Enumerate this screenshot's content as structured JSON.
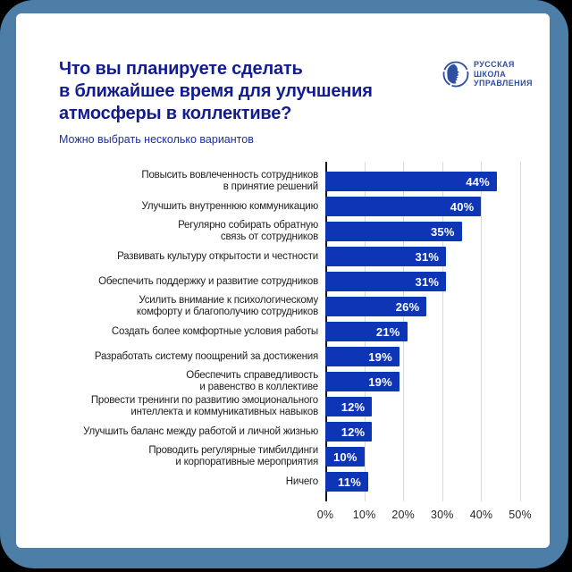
{
  "header": {
    "title_lines": [
      "Что вы планируете сделать",
      "в ближайшее время для улучшения",
      "атмосферы в коллективе?"
    ],
    "subtitle": "Можно выбрать несколько вариантов"
  },
  "logo": {
    "emblem_icon": "rsu-profile-emblem-icon",
    "lines": [
      "РУССКАЯ",
      "ШКОЛА",
      "УПРАВЛЕНИЯ"
    ]
  },
  "colors": {
    "frame": "#4d7ea8",
    "title": "#121c90",
    "subtitle": "#1c2e9e",
    "logo": "#2f4fa3",
    "bar": "#0d35b5",
    "label": "#1d1d1d",
    "grid": "#d9d9d9"
  },
  "chart_data": {
    "type": "bar",
    "orientation": "horizontal",
    "title": "Что вы планируете сделать в ближайшее время для улучшения атмосферы в коллективе?",
    "subtitle": "Можно выбрать несколько вариантов",
    "categories": [
      "Повысить вовлеченность сотрудников в принятие решений",
      "Улучшить внутреннюю коммуникацию",
      "Регулярно собирать обратную связь от сотрудников",
      "Развивать культуру открытости и честности",
      "Обеспечить поддержку и развитие сотрудников",
      "Усилить внимание к психологическому комфорту и благополучию сотрудников",
      "Создать более комфортные условия работы",
      "Разработать систему поощрений за достижения",
      "Обеспечить справедливость и равенство в коллективе",
      "Провести тренинги по развитию эмоционального интеллекта и коммуникативных навыков",
      "Улучшить баланс между работой и личной жизнью",
      "Проводить регулярные тимбилдинги и корпоративные мероприятия",
      "Ничего"
    ],
    "label_lines": [
      [
        "Повысить вовлеченность сотрудников",
        "в принятие решений"
      ],
      [
        "Улучшить внутреннюю коммуникацию"
      ],
      [
        "Регулярно собирать обратную",
        "связь от сотрудников"
      ],
      [
        "Развивать культуру открытости и честности"
      ],
      [
        "Обеспечить поддержку и развитие сотрудников"
      ],
      [
        "Усилить внимание к психологическому",
        "комфорту и благополучию сотрудников"
      ],
      [
        "Создать более комфортные условия работы"
      ],
      [
        "Разработать систему поощрений за достижения"
      ],
      [
        "Обеспечить справедливость",
        "и равенство в коллективе"
      ],
      [
        "Провести тренинги по развитию эмоционального",
        "интеллекта и коммуникативных навыков"
      ],
      [
        "Улучшить баланс между работой и личной жизнью"
      ],
      [
        "Проводить регулярные тимбилдинги",
        "и корпоративные мероприятия"
      ],
      [
        "Ничего"
      ]
    ],
    "values": [
      44,
      40,
      35,
      31,
      31,
      26,
      21,
      19,
      19,
      12,
      12,
      10,
      11
    ],
    "value_labels": [
      "44%",
      "40%",
      "35%",
      "31%",
      "31%",
      "26%",
      "21%",
      "19%",
      "19%",
      "12%",
      "12%",
      "10%",
      "11%"
    ],
    "xlabel": "",
    "ylabel": "",
    "xlim": [
      0,
      50
    ],
    "x_ticks": [
      "0%",
      "10%",
      "20%",
      "30%",
      "40%",
      "50%"
    ],
    "grid": true,
    "legend": false,
    "bar_color": "#0d35b5",
    "value_label_position": "inside-end"
  }
}
